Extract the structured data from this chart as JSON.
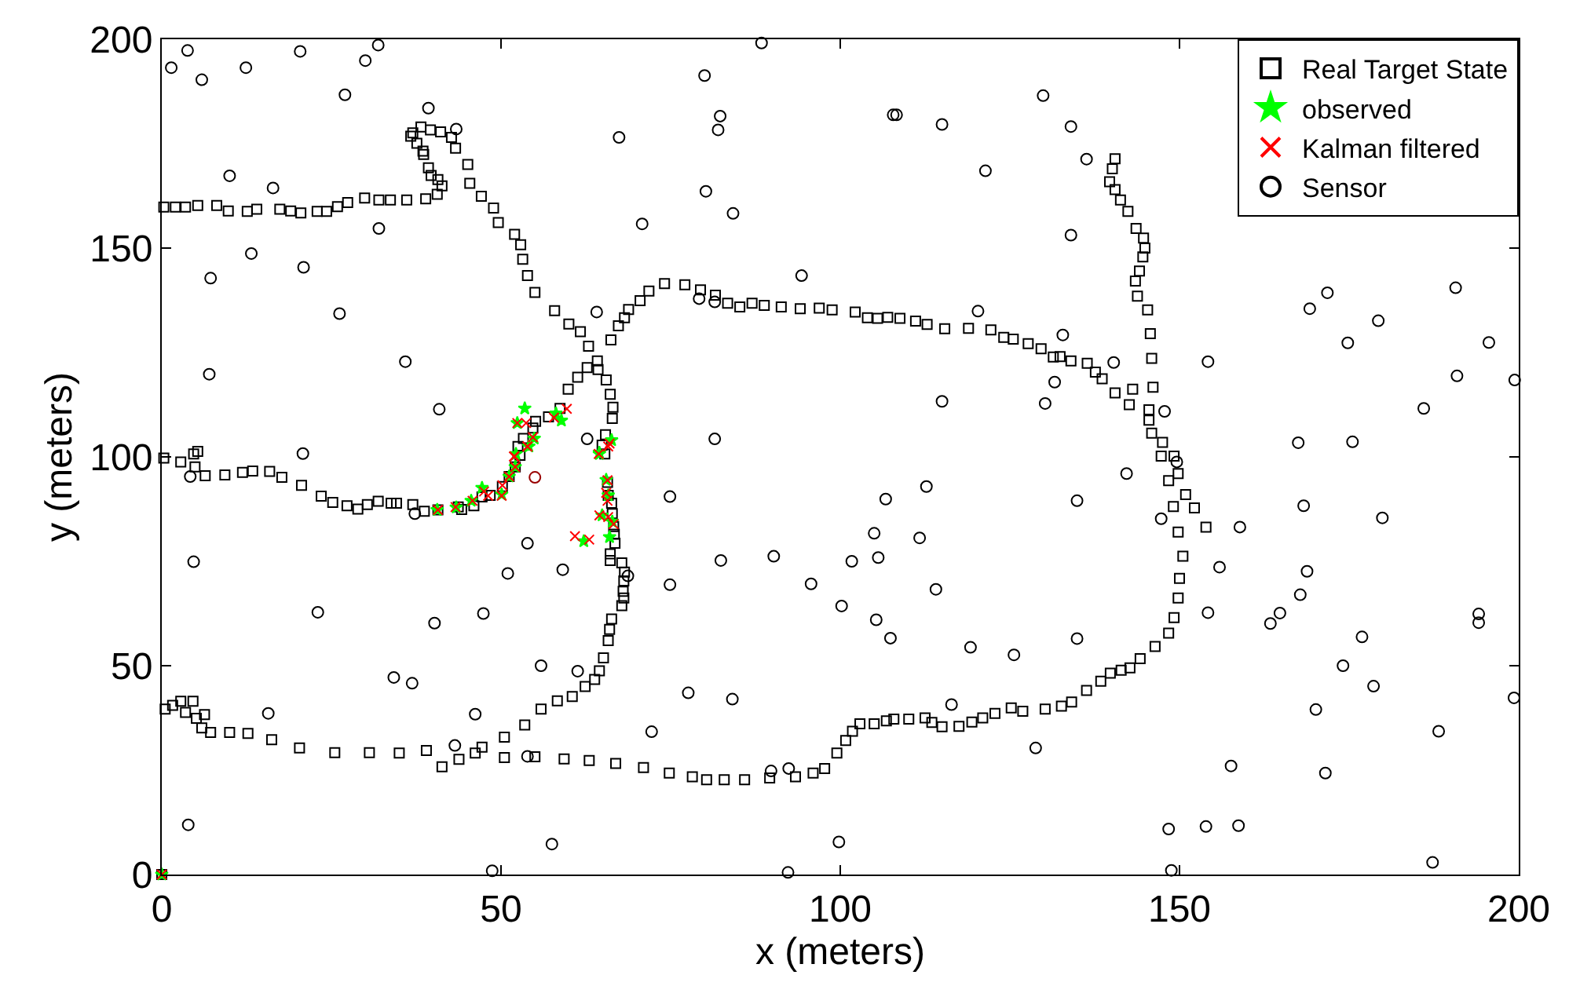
{
  "chart_data": {
    "type": "scatter",
    "xlabel": "x (meters)",
    "ylabel": "y (meters)",
    "xlim": [
      0,
      200
    ],
    "ylim": [
      0,
      200
    ],
    "xticks": [
      0,
      50,
      100,
      150,
      200
    ],
    "yticks": [
      0,
      50,
      100,
      150,
      200
    ],
    "legend": "top right",
    "series": [
      {
        "name": "Real Target State",
        "color": "#000000",
        "marker": "square",
        "x": [
          0.3,
          2.0,
          3.5,
          5.3,
          8.1,
          9.8,
          12.6,
          14.0,
          17.4,
          19.0,
          20.5,
          22.9,
          24.3,
          25.9,
          27.4,
          29.9,
          32.0,
          33.7,
          36.1,
          38.9,
          40.6,
          41.3,
          40.7,
          39.7,
          39.3,
          38.6,
          38.5,
          37.6,
          36.7,
          37.0,
          38.2,
          39.6,
          41.1,
          42.7,
          43.3,
          45.1,
          45.4,
          47.1,
          48.9,
          49.6,
          52.0,
          52.9,
          53.2,
          53.9,
          55.0,
          57.9,
          60.0,
          61.7,
          62.9,
          64.2,
          64.3,
          65.5,
          66.1,
          66.5,
          66.4,
          65.4,
          64.9,
          65.3,
          65.7,
          65.8,
          66.3,
          66.4,
          66.6,
          66.7,
          66.8,
          66.1,
          66.1,
          67.8,
          68.2,
          68.1,
          68.0,
          68.1,
          67.8,
          66.3,
          66.0,
          65.8,
          65.1,
          64.5,
          63.8,
          62.4,
          60.5,
          58.3,
          55.9,
          53.5,
          50.5,
          47.2,
          46.2,
          43.8,
          41.3,
          39.0,
          35.0,
          30.6,
          25.5,
          20.3,
          16.2,
          12.7,
          10.0,
          7.2,
          5.9,
          0.5,
          1.6,
          2.8,
          3.5,
          4.6,
          5.1,
          6.3,
          0,
          50.5,
          55.0,
          59.3,
          63.0,
          66.9,
          71.0,
          74.8,
          78.2,
          80.3,
          82.9,
          85.9,
          89.6,
          93.4,
          96.0,
          97.7,
          99.5,
          100.8,
          101.8,
          102.9,
          105.0,
          106.8,
          107.9,
          110.1,
          112.5,
          113.5,
          115.0,
          117.5,
          119.4,
          121.0,
          122.8,
          125.2,
          126.9,
          130.2,
          132.6,
          134.1,
          136.3,
          138.4,
          139.8,
          141.4,
          142.7,
          144.2,
          146.4,
          148.4,
          149.2,
          149.8,
          150.0,
          150.5,
          149.8,
          149.1,
          148.4,
          149.8,
          150.9,
          152.2,
          153.9,
          149.2,
          147.3,
          147.5,
          145.9,
          145.5,
          145.5,
          143.1,
          140.5,
          138.6,
          146.1,
          145.9,
          145.7,
          145.3,
          143.8,
          143.5,
          144.1,
          144.6,
          144.9,
          144.7,
          143.6,
          142.4,
          141.3,
          140.5,
          139.7,
          140.1,
          140.5,
          66.2,
          67.3,
          68.2,
          68.8,
          70.5,
          71.8,
          74.1,
          77.1,
          79.4,
          81.6,
          83.4,
          85.2,
          87.0,
          88.8,
          91.3,
          94.1,
          96.9,
          98.8,
          102.2,
          104.0,
          105.5,
          107.0,
          108.8,
          111.1,
          112.8,
          115.4,
          118.9,
          122.2,
          124.1,
          125.5,
          127.7,
          129.6,
          131.4,
          132.4,
          134.0,
          136.4,
          137.6,
          142.6,
          0.3,
          2.8,
          4.7,
          5.3,
          4.9,
          6.4,
          9.3,
          11.9,
          13.4,
          15.9,
          17.7,
          20.6,
          23.5,
          25.2,
          27.3,
          28.9,
          30.3,
          31.9,
          33.8,
          34.6,
          37.0,
          38.7,
          40.7,
          43.7,
          44.2,
          46.0,
          47.2,
          48.4,
          50.2,
          51.2,
          52.1,
          52.8,
          52.5,
          53.3,
          54.7,
          55.1,
          57.0,
          58.7,
          59.9,
          61.3,
          62.7
        ],
        "values": [
          159.8,
          159.8,
          159.8,
          160.2,
          160.2,
          158.9,
          158.8,
          159.3,
          159.3,
          158.9,
          158.4,
          158.8,
          158.8,
          159.9,
          160.9,
          162.0,
          161.5,
          161.5,
          161.5,
          161.8,
          162.9,
          164.9,
          166.4,
          167.4,
          169.2,
          172.4,
          173.2,
          175.1,
          176.8,
          177.6,
          179.0,
          178.3,
          177.8,
          176.5,
          173.9,
          170.0,
          165.5,
          162.4,
          159.6,
          156.1,
          153.3,
          150.8,
          147.3,
          143.4,
          139.4,
          135.0,
          131.8,
          130.0,
          126.5,
          123.0,
          120.9,
          118.4,
          115.0,
          111.9,
          109.2,
          105.3,
          102.8,
          100.7,
          93.9,
          90.8,
          88.9,
          86.4,
          83.3,
          81.5,
          79.3,
          76.8,
          75.2,
          74.6,
          72.4,
          70.3,
          67.8,
          66.2,
          64.4,
          61.2,
          58.7,
          56.0,
          51.9,
          48.8,
          46.7,
          45.0,
          42.6,
          41.6,
          39.6,
          35.8,
          32.9,
          30.5,
          29.1,
          27.6,
          25.8,
          29.7,
          29.1,
          29.2,
          29.2,
          30.3,
          32.3,
          33.8,
          34.0,
          34.0,
          35.1,
          39.6,
          40.5,
          41.5,
          38.8,
          41.5,
          37.4,
          38.3,
          0,
          28.0,
          28.2,
          27.7,
          27.3,
          26.6,
          25.6,
          24.3,
          23.4,
          22.7,
          22.7,
          22.7,
          23.1,
          23.4,
          24.3,
          25.4,
          29.1,
          32.1,
          34.3,
          36.1,
          36.1,
          36.8,
          37.2,
          37.2,
          37.5,
          36.4,
          35.4,
          35.5,
          36.5,
          37.5,
          38.6,
          39.9,
          39.1,
          39.6,
          40.3,
          41.3,
          44.1,
          46.3,
          48.2,
          48.9,
          49.5,
          51.7,
          54.6,
          57.8,
          61.5,
          66.2,
          70.9,
          76.2,
          82.0,
          88.1,
          94.3,
          96.0,
          91.0,
          87.8,
          83.2,
          100.2,
          100.2,
          103.5,
          105.7,
          108.8,
          111.3,
          116.2,
          115.3,
          118.7,
          116.7,
          123.6,
          129.5,
          135.2,
          138.5,
          142.1,
          144.5,
          147.9,
          150.0,
          152.4,
          154.7,
          158.8,
          161.5,
          164.0,
          165.9,
          169.0,
          171.4,
          128.0,
          131.4,
          133.3,
          135.3,
          137.4,
          139.7,
          141.5,
          141.2,
          140.0,
          138.7,
          136.8,
          135.9,
          136.8,
          136.3,
          135.9,
          135.5,
          135.6,
          135.2,
          134.7,
          133.3,
          133.2,
          133.4,
          133.2,
          132.5,
          131.7,
          130.7,
          130.8,
          130.4,
          128.6,
          128.2,
          127.1,
          125.9,
          123.9,
          124.0,
          123.0,
          122.4,
          120.3,
          112.5,
          99.7,
          98.8,
          100.7,
          101.3,
          97.6,
          95.5,
          95.7,
          96.3,
          96.6,
          96.5,
          95.1,
          93.2,
          90.6,
          89.1,
          88.3,
          87.5,
          88.6,
          89.4,
          88.9,
          88.9,
          88.6,
          87.0,
          87.3,
          88.0,
          87.4,
          88.3,
          90.4,
          90.8,
          92.9,
          95.3,
          97.6,
          100.4,
          102.5,
          104.4,
          106.9,
          108.5,
          109.6,
          111.6,
          116.2,
          119.1,
          121.4
        ]
      },
      {
        "name": "observed",
        "color": "#00ff00",
        "marker": "star",
        "x": [
          53.5,
          52.4,
          54.1,
          54.9,
          58.1,
          58.9,
          52.2,
          66.3,
          64.5,
          47.2,
          50.1,
          51.2,
          52.1,
          45.6,
          43.4,
          40.6,
          65.5,
          65.8,
          64.9,
          66.4,
          66.0,
          62.2,
          64.5,
          0
        ],
        "values": [
          111.6,
          108.1,
          102.5,
          104.4,
          110.4,
          108.7,
          100.7,
          104.0,
          101.0,
          92.6,
          91.0,
          95.3,
          97.6,
          89.5,
          87.9,
          87.3,
          94.5,
          90.8,
          86.0,
          84.5,
          80.8,
          79.8,
          100.7,
          0
        ]
      },
      {
        "name": "Kalman filtered",
        "color": "#ff0000",
        "marker": "cross",
        "x": [
          52.4,
          53.7,
          59.7,
          57.8,
          53.9,
          54.7,
          51.9,
          66.0,
          64.4,
          40.7,
          43.3,
          45.8,
          47.5,
          48.1,
          50.1,
          50.2,
          51.2,
          52.1,
          52.0,
          53.9,
          65.8,
          65.7,
          65.5,
          65.7,
          64.5,
          65.8,
          66.6,
          60.9,
          63.0,
          0
        ],
        "values": [
          108.1,
          108.1,
          111.5,
          109.4,
          102.5,
          104.7,
          100.1,
          103.2,
          100.7,
          87.3,
          88.0,
          89.5,
          91.7,
          90.7,
          90.7,
          93.2,
          95.3,
          97.6,
          100.1,
          102.5,
          102.5,
          94.4,
          91.4,
          89.5,
          86.0,
          85.6,
          83.9,
          81.0,
          80.2,
          0
        ]
      },
      {
        "name": "Sensor",
        "color": "#000000",
        "marker": "circle",
        "x": [
          3.8,
          1.4,
          5.9,
          12.4,
          20.4,
          30.0,
          31.9,
          27.0,
          39.3,
          43.4,
          67.4,
          10.0,
          16.4,
          70.8,
          32.0,
          13.2,
          20.9,
          7.2,
          26.2,
          64.1,
          35.9,
          7.0,
          40.9,
          62.7,
          20.8,
          4.2,
          37.3,
          53.9,
          4.7,
          51.0,
          59.1,
          74.9,
          74.9,
          68.7,
          23.0,
          40.2,
          47.4,
          55.9,
          61.3,
          34.2,
          36.9,
          15.7,
          46.2,
          72.2,
          43.2,
          53.9,
          3.9,
          57.5,
          48.7,
          88.4,
          80.0,
          82.3,
          82.0,
          107.8,
          108.3,
          115.0,
          129.9,
          134.0,
          136.3,
          121.4,
          80.2,
          84.2,
          134.0,
          94.3,
          79.2,
          81.5,
          120.3,
          132.8,
          140.3,
          131.6,
          115.0,
          130.2,
          81.5,
          82.4,
          90.2,
          95.7,
          101.7,
          105.0,
          105.6,
          106.7,
          112.7,
          111.7,
          114.1,
          100.2,
          105.3,
          107.4,
          119.2,
          125.6,
          134.9,
          134.9,
          142.2,
          77.6,
          84.1,
          116.4,
          128.8,
          89.8,
          92.4,
          99.8,
          92.3,
          171.8,
          169.2,
          190.7,
          179.3,
          174.8,
          195.6,
          190.9,
          199.4,
          154.2,
          186.0,
          167.5,
          175.5,
          147.8,
          149.6,
          147.3,
          168.3,
          179.9,
          158.9,
          155.9,
          168.8,
          167.8,
          154.2,
          163.4,
          164.8,
          194.1,
          194.1,
          176.9,
          174.1,
          178.6,
          199.3,
          170.1,
          188.2,
          157.6,
          171.5,
          148.4,
          153.9,
          158.7,
          187.3,
          148.8
        ],
        "values": [
          197.3,
          193.2,
          190.3,
          193.2,
          197.1,
          194.9,
          198.6,
          186.7,
          183.5,
          178.5,
          176.5,
          167.3,
          164.4,
          155.8,
          154.7,
          148.7,
          145.4,
          142.8,
          134.3,
          134.7,
          122.8,
          119.8,
          111.4,
          104.3,
          100.8,
          95.3,
          86.4,
          79.3,
          74.9,
          72.1,
          73.0,
          69.4,
          90.5,
          71.5,
          62.8,
          60.2,
          62.5,
          50.0,
          48.7,
          47.2,
          45.8,
          38.6,
          38.4,
          34.2,
          30.9,
          28.3,
          11.9,
          7.3,
          0.9,
          199.1,
          191.3,
          181.6,
          178.3,
          181.9,
          181.9,
          179.6,
          186.5,
          179.1,
          171.3,
          168.5,
          163.6,
          158.3,
          153.1,
          143.4,
          137.9,
          137.1,
          134.9,
          129.2,
          122.6,
          117.9,
          113.3,
          112.8,
          104.3,
          75.2,
          76.2,
          69.6,
          75.0,
          81.7,
          75.9,
          89.9,
          92.9,
          80.6,
          68.3,
          64.3,
          61.0,
          56.6,
          54.4,
          52.6,
          89.5,
          56.5,
          96.0,
          43.5,
          42.0,
          40.7,
          30.3,
          24.8,
          25.4,
          7.8,
          0.5,
          139.3,
          135.5,
          140.5,
          132.6,
          127.3,
          127.4,
          119.4,
          118.4,
          122.8,
          111.6,
          103.4,
          103.6,
          110.9,
          98.8,
          85.2,
          88.3,
          85.4,
          83.2,
          73.6,
          72.6,
          67.0,
          62.7,
          60.1,
          62.6,
          62.4,
          60.3,
          56.9,
          50.0,
          45.1,
          42.3,
          39.5,
          34.3,
          26.0,
          24.3,
          10.9,
          11.5,
          11.7,
          2.9,
          1.0
        ]
      },
      {
        "color": "#990000",
        "marker": "circle",
        "x": [
          55.0
        ],
        "values": [
          95.1
        ]
      }
    ]
  }
}
